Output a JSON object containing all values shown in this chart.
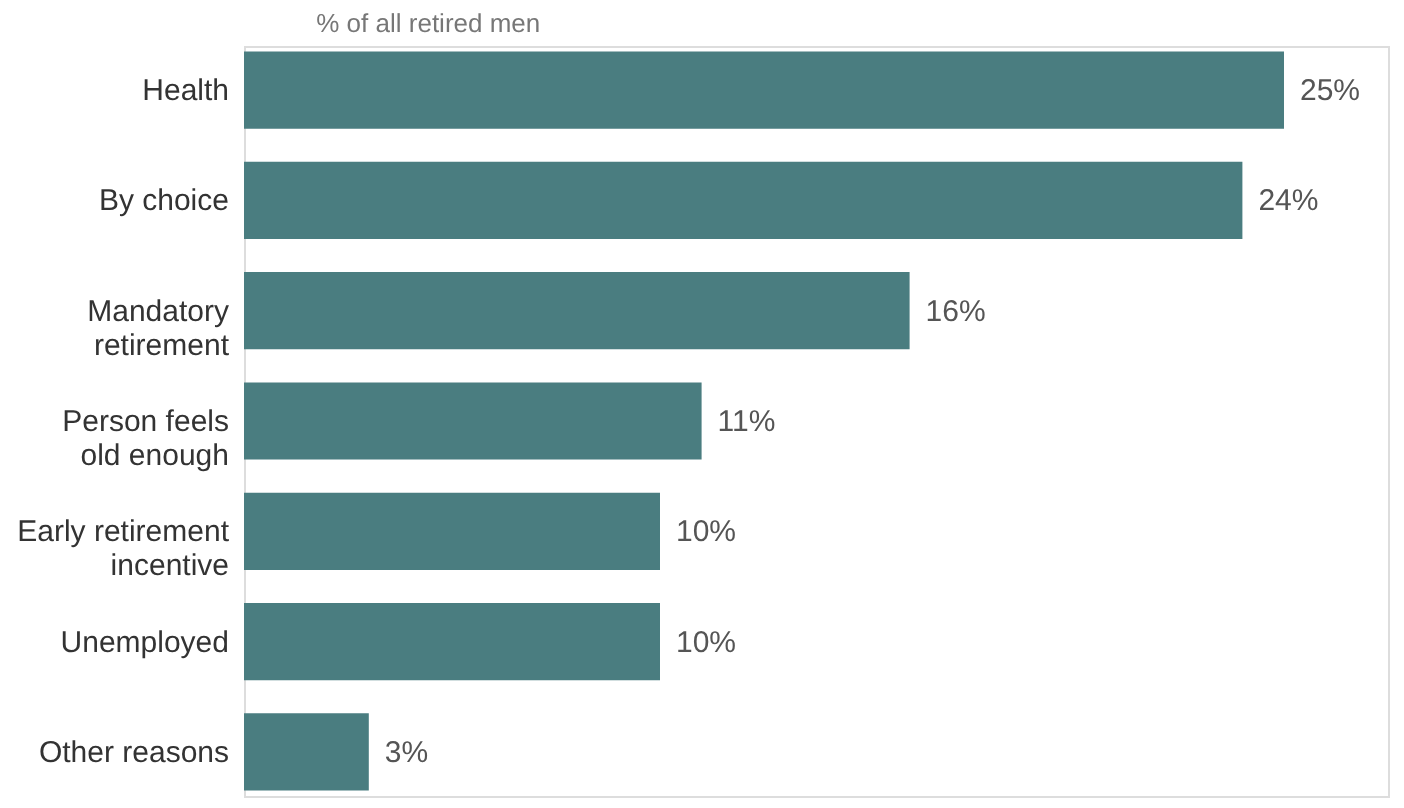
{
  "chart_data": {
    "type": "bar",
    "orientation": "horizontal",
    "title": "% of all retired men",
    "categories": [
      "Health",
      "By choice",
      "Mandatory\nretirement",
      "Person feels\nold enough",
      "Early retirement\nincentive",
      "Unemployed",
      "Other reasons"
    ],
    "values": [
      25,
      24,
      16,
      11,
      10,
      10,
      3
    ],
    "value_labels": [
      "25%",
      "24%",
      "16%",
      "11%",
      "10%",
      "10%",
      "3%"
    ],
    "color": "#4a7d80",
    "xlim": [
      0,
      27.5
    ],
    "tick_labels": "y"
  }
}
